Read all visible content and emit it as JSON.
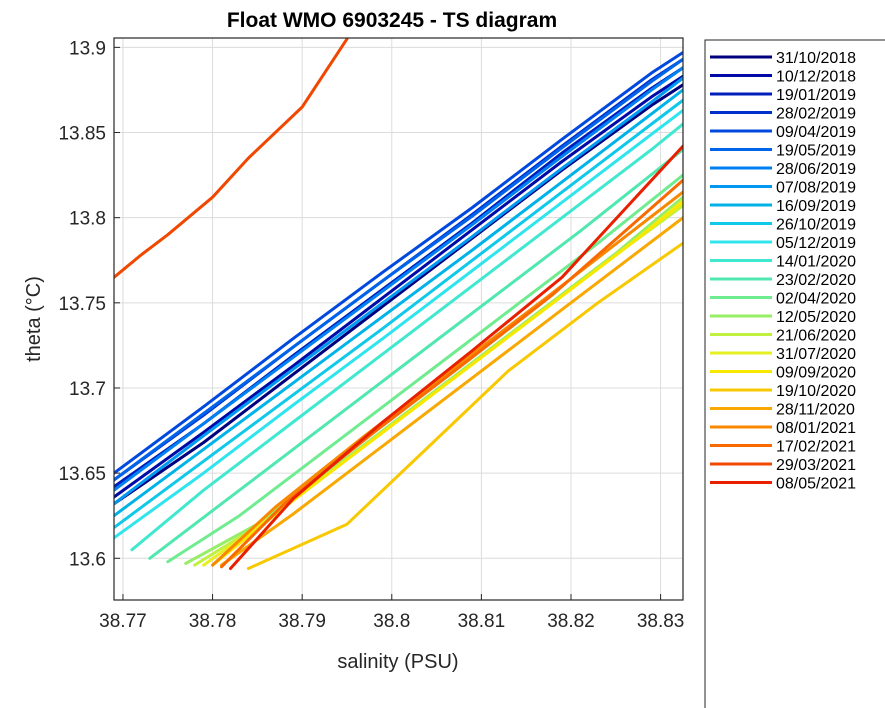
{
  "chart_data": {
    "type": "line",
    "title": "Float WMO 6903245 - TS diagram",
    "xlabel": "salinity (PSU)",
    "ylabel": "theta (°C)",
    "xlim": [
      38.769,
      38.8325
    ],
    "ylim": [
      13.5755,
      13.9055
    ],
    "xticks": [
      "38.77",
      "38.78",
      "38.79",
      "38.8",
      "38.81",
      "38.82",
      "38.83"
    ],
    "yticks": [
      "13.6",
      "13.65",
      "13.7",
      "13.75",
      "13.8",
      "13.85",
      "13.9"
    ],
    "grid": true,
    "legend_position": "right-outside",
    "series": [
      {
        "name": "31/10/2018",
        "color": "#00007f",
        "x": [
          38.769,
          38.779,
          38.789,
          38.799,
          38.809,
          38.819,
          38.829,
          38.8325
        ],
        "y": [
          13.632,
          13.668,
          13.708,
          13.748,
          13.788,
          13.828,
          13.866,
          13.878
        ]
      },
      {
        "name": "10/12/2018",
        "color": "#000aa6",
        "x": [
          38.769,
          38.779,
          38.789,
          38.799,
          38.809,
          38.819,
          38.829,
          38.8325
        ],
        "y": [
          13.636,
          13.674,
          13.713,
          13.753,
          13.793,
          13.833,
          13.871,
          13.883
        ]
      },
      {
        "name": "19/01/2019",
        "color": "#001ebb",
        "x": [
          38.769,
          38.779,
          38.789,
          38.799,
          38.809,
          38.819,
          38.829,
          38.8325
        ],
        "y": [
          13.642,
          13.679,
          13.719,
          13.758,
          13.797,
          13.838,
          13.876,
          13.888
        ]
      },
      {
        "name": "28/02/2019",
        "color": "#0030cc",
        "x": [
          38.769,
          38.779,
          38.789,
          38.799,
          38.809,
          38.819,
          38.829,
          38.8325
        ],
        "y": [
          13.646,
          13.684,
          13.724,
          13.763,
          13.802,
          13.842,
          13.881,
          13.893
        ]
      },
      {
        "name": "09/04/2019",
        "color": "#0048de",
        "x": [
          38.769,
          38.779,
          38.789,
          38.799,
          38.809,
          38.819,
          38.829,
          38.8325
        ],
        "y": [
          13.65,
          13.689,
          13.729,
          13.768,
          13.806,
          13.846,
          13.885,
          13.897
        ]
      },
      {
        "name": "19/05/2019",
        "color": "#0064ea",
        "x": [
          38.769,
          38.779,
          38.789,
          38.799,
          38.809,
          38.819,
          38.829,
          38.8325
        ],
        "y": [
          13.646,
          13.685,
          13.724,
          13.763,
          13.801,
          13.841,
          13.88,
          13.893
        ]
      },
      {
        "name": "28/06/2019",
        "color": "#0080f2",
        "x": [
          38.769,
          38.779,
          38.789,
          38.799,
          38.809,
          38.819,
          38.829,
          38.8325
        ],
        "y": [
          13.64,
          13.679,
          13.718,
          13.757,
          13.796,
          13.836,
          13.875,
          13.888
        ]
      },
      {
        "name": "07/08/2019",
        "color": "#0098f0",
        "x": [
          38.769,
          38.779,
          38.789,
          38.799,
          38.809,
          38.819,
          38.829,
          38.8325
        ],
        "y": [
          13.632,
          13.672,
          13.711,
          13.75,
          13.789,
          13.829,
          13.868,
          13.882
        ]
      },
      {
        "name": "16/09/2019",
        "color": "#00b2e8",
        "x": [
          38.769,
          38.779,
          38.789,
          38.799,
          38.809,
          38.819,
          38.829,
          38.8325
        ],
        "y": [
          13.625,
          13.664,
          13.703,
          13.742,
          13.781,
          13.821,
          13.861,
          13.875
        ]
      },
      {
        "name": "26/10/2019",
        "color": "#10c8e8",
        "x": [
          38.769,
          38.779,
          38.789,
          38.799,
          38.809,
          38.819,
          38.829,
          38.8325
        ],
        "y": [
          13.618,
          13.657,
          13.696,
          13.735,
          13.775,
          13.815,
          13.855,
          13.869
        ]
      },
      {
        "name": "05/12/2019",
        "color": "#30e4ee",
        "x": [
          38.769,
          38.779,
          38.789,
          38.799,
          38.809,
          38.819,
          38.829,
          38.8325
        ],
        "y": [
          13.612,
          13.65,
          13.69,
          13.729,
          13.769,
          13.809,
          13.849,
          13.863
        ]
      },
      {
        "name": "14/01/2020",
        "color": "#40e8d0",
        "x": [
          38.771,
          38.779,
          38.789,
          38.799,
          38.809,
          38.819,
          38.829,
          38.8325
        ],
        "y": [
          13.605,
          13.64,
          13.68,
          13.72,
          13.76,
          13.8,
          13.84,
          13.855
        ]
      },
      {
        "name": "23/02/2020",
        "color": "#50e8b0",
        "x": [
          38.773,
          38.781,
          38.791,
          38.801,
          38.811,
          38.821,
          38.8325
        ],
        "y": [
          13.6,
          13.632,
          13.672,
          13.712,
          13.752,
          13.792,
          13.84
        ]
      },
      {
        "name": "02/04/2020",
        "color": "#70ec90",
        "x": [
          38.775,
          38.783,
          38.793,
          38.803,
          38.813,
          38.823,
          38.8325
        ],
        "y": [
          13.598,
          13.625,
          13.665,
          13.705,
          13.745,
          13.785,
          13.825
        ]
      },
      {
        "name": "12/05/2020",
        "color": "#96ee66",
        "x": [
          38.777,
          38.785,
          38.795,
          38.805,
          38.815,
          38.825,
          38.8325
        ],
        "y": [
          13.597,
          13.62,
          13.659,
          13.699,
          13.739,
          13.779,
          13.812
        ]
      },
      {
        "name": "21/06/2020",
        "color": "#c0f040",
        "x": [
          38.778,
          38.786,
          38.796,
          38.806,
          38.816,
          38.826,
          38.8325
        ],
        "y": [
          13.596,
          13.622,
          13.662,
          13.702,
          13.742,
          13.782,
          13.807
        ]
      },
      {
        "name": "31/07/2020",
        "color": "#e6f020",
        "x": [
          38.779,
          38.787,
          38.797,
          38.807,
          38.817,
          38.827,
          38.8325
        ],
        "y": [
          13.596,
          13.626,
          13.666,
          13.706,
          13.746,
          13.786,
          13.81
        ]
      },
      {
        "name": "09/09/2020",
        "color": "#f8e800",
        "x": [
          38.78,
          38.788,
          38.798,
          38.808,
          38.818,
          38.828,
          38.8325
        ],
        "y": [
          13.596,
          13.63,
          13.67,
          13.71,
          13.75,
          13.79,
          13.809
        ]
      },
      {
        "name": "19/10/2020",
        "color": "#f8c800",
        "x": [
          38.784,
          38.795,
          38.803,
          38.813,
          38.823,
          38.8325
        ],
        "y": [
          13.594,
          13.62,
          13.66,
          13.71,
          13.75,
          13.785
        ]
      },
      {
        "name": "28/11/2020",
        "color": "#f8a800",
        "x": [
          38.781,
          38.789,
          38.799,
          38.809,
          38.819,
          38.8325
        ],
        "y": [
          13.596,
          13.626,
          13.666,
          13.706,
          13.746,
          13.8
        ]
      },
      {
        "name": "08/01/2021",
        "color": "#f88800",
        "x": [
          38.78,
          38.787,
          38.797,
          38.807,
          38.817,
          38.8325
        ],
        "y": [
          13.596,
          13.63,
          13.672,
          13.712,
          13.752,
          13.815
        ]
      },
      {
        "name": "17/02/2021",
        "color": "#f86a00",
        "x": [
          38.781,
          38.788,
          38.798,
          38.808,
          38.818,
          38.8325
        ],
        "y": [
          13.595,
          13.632,
          13.674,
          13.714,
          13.755,
          13.822
        ]
      },
      {
        "name": "29/03/2021",
        "color": "#f04800",
        "x": [
          38.769,
          38.772,
          38.775,
          38.78,
          38.784,
          38.79,
          38.795
        ],
        "y": [
          13.765,
          13.778,
          13.79,
          13.812,
          13.835,
          13.865,
          13.905
        ]
      },
      {
        "name": "08/05/2021",
        "color": "#e82000",
        "x": [
          38.782,
          38.789,
          38.799,
          38.809,
          38.819,
          38.8325
        ],
        "y": [
          13.594,
          13.635,
          13.68,
          13.722,
          13.765,
          13.842
        ]
      }
    ]
  }
}
